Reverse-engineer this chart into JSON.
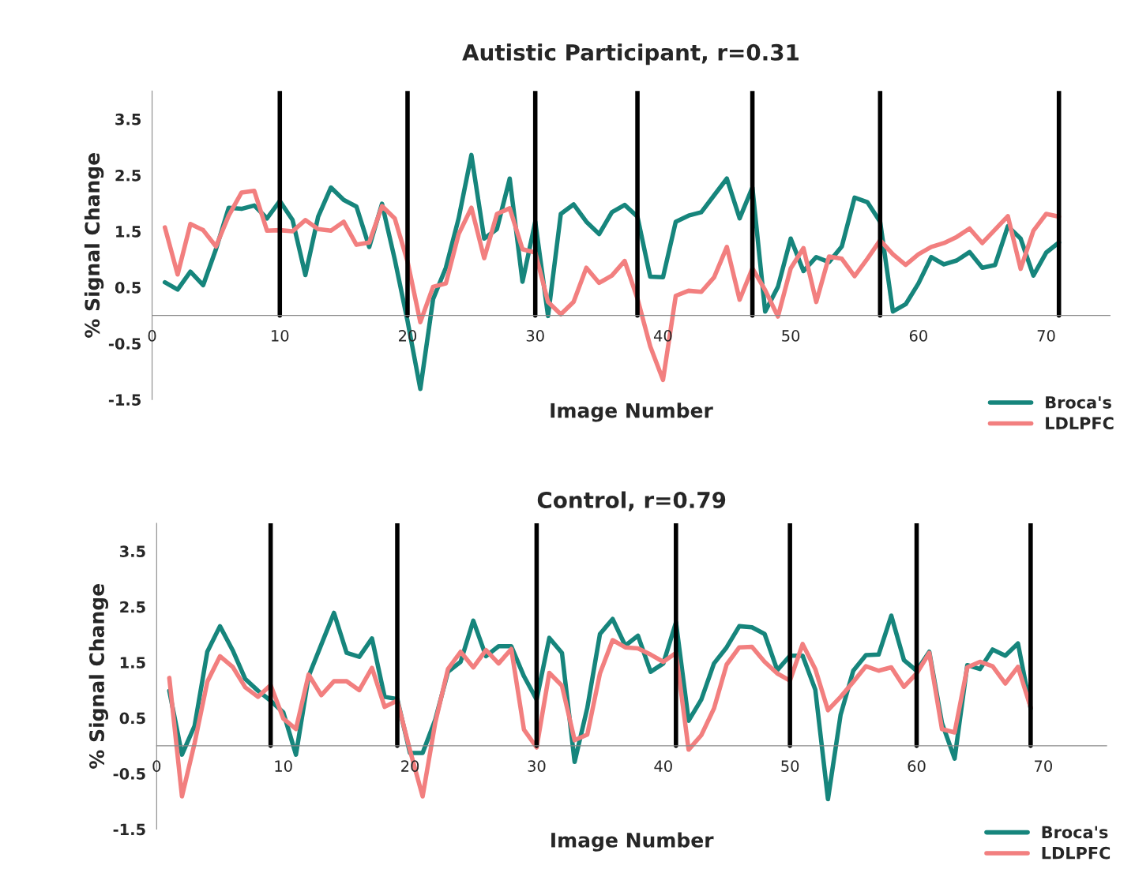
{
  "chart_data": [
    {
      "type": "line",
      "title": "Autistic Participant, r=0.31",
      "xlabel": "Image Number",
      "ylabel": "% Signal Change",
      "x": [
        1,
        2,
        3,
        4,
        5,
        6,
        7,
        8,
        9,
        10,
        11,
        12,
        13,
        14,
        15,
        16,
        17,
        18,
        19,
        20,
        21,
        22,
        23,
        24,
        25,
        26,
        27,
        28,
        29,
        30,
        31,
        32,
        33,
        34,
        35,
        36,
        37,
        38,
        39,
        40,
        41,
        42,
        43,
        44,
        45,
        46,
        47,
        48,
        49,
        50,
        51,
        52,
        53,
        54,
        55,
        56,
        57,
        58,
        59,
        60,
        61,
        62,
        63,
        64,
        65,
        66,
        67,
        68,
        69,
        70,
        71
      ],
      "series": [
        {
          "name": "Broca's",
          "color": "#16857c",
          "values": [
            0.59,
            0.46,
            0.78,
            0.54,
            1.18,
            1.92,
            1.9,
            1.96,
            1.73,
            2.04,
            1.7,
            0.72,
            1.76,
            2.28,
            2.06,
            1.94,
            1.22,
            1.99,
            1.0,
            -0.1,
            -1.31,
            0.29,
            0.85,
            1.73,
            2.86,
            1.37,
            1.54,
            2.44,
            0.6,
            1.67,
            -0.01,
            1.81,
            1.98,
            1.67,
            1.45,
            1.84,
            1.97,
            1.76,
            0.69,
            0.68,
            1.67,
            1.78,
            1.84,
            2.14,
            2.44,
            1.73,
            2.28,
            0.07,
            0.51,
            1.37,
            0.79,
            1.04,
            0.95,
            1.23,
            2.1,
            2.02,
            1.67,
            0.07,
            0.2,
            0.57,
            1.04,
            0.91,
            0.98,
            1.13,
            0.85,
            0.9,
            1.59,
            1.37,
            0.71,
            1.12,
            1.3
          ]
        },
        {
          "name": "LDLPFC",
          "color": "#f27f7f",
          "values": [
            1.57,
            0.73,
            1.63,
            1.52,
            1.23,
            1.78,
            2.19,
            2.22,
            1.51,
            1.52,
            1.5,
            1.7,
            1.54,
            1.51,
            1.67,
            1.26,
            1.3,
            1.95,
            1.73,
            0.96,
            -0.12,
            0.51,
            0.57,
            1.45,
            1.92,
            1.02,
            1.81,
            1.91,
            1.18,
            1.12,
            0.24,
            0.02,
            0.24,
            0.85,
            0.58,
            0.71,
            0.97,
            0.3,
            -0.55,
            -1.15,
            0.35,
            0.44,
            0.42,
            0.68,
            1.22,
            0.28,
            0.84,
            0.45,
            -0.02,
            0.84,
            1.2,
            0.24,
            1.05,
            1.01,
            0.7,
            1.01,
            1.34,
            1.09,
            0.9,
            1.09,
            1.22,
            1.29,
            1.4,
            1.55,
            1.29,
            1.53,
            1.77,
            0.83,
            1.51,
            1.81,
            1.76
          ]
        }
      ],
      "xlim": [
        0,
        75
      ],
      "xticks": [
        0,
        10,
        20,
        30,
        40,
        50,
        60,
        70
      ],
      "ylim": [
        -1.5,
        4
      ],
      "yticks": [
        -1.5,
        -0.5,
        0.5,
        1.5,
        2.5,
        3.5
      ],
      "ref_lines": [
        {
          "axis": "x",
          "value": 10,
          "color": "#000000"
        },
        {
          "axis": "x",
          "value": 20,
          "color": "#000000"
        },
        {
          "axis": "x",
          "value": 30,
          "color": "#000000"
        },
        {
          "axis": "x",
          "value": 38,
          "color": "#000000"
        },
        {
          "axis": "x",
          "value": 47,
          "color": "#000000"
        },
        {
          "axis": "x",
          "value": 57,
          "color": "#000000"
        },
        {
          "axis": "x",
          "value": 71,
          "color": "#000000"
        }
      ],
      "grid": false,
      "legend": "bottom right",
      "marker": "none",
      "line_style": "solid"
    },
    {
      "type": "line",
      "title": "Control, r=0.79",
      "xlabel": "Image Number",
      "ylabel": "% Signal Change",
      "x": [
        1,
        2,
        3,
        4,
        5,
        6,
        7,
        8,
        9,
        10,
        11,
        12,
        13,
        14,
        15,
        16,
        17,
        18,
        19,
        20,
        21,
        22,
        23,
        24,
        25,
        26,
        27,
        28,
        29,
        30,
        31,
        32,
        33,
        34,
        35,
        36,
        37,
        38,
        39,
        40,
        41,
        42,
        43,
        44,
        45,
        46,
        47,
        48,
        49,
        50,
        51,
        52,
        53,
        54,
        55,
        56,
        57,
        58,
        59,
        60,
        61,
        62,
        63,
        64,
        65,
        66,
        67,
        68,
        69
      ],
      "series": [
        {
          "name": "Broca's",
          "color": "#16857c",
          "values": [
            0.99,
            -0.16,
            0.36,
            1.69,
            2.15,
            1.72,
            1.2,
            0.99,
            0.81,
            0.6,
            -0.16,
            1.25,
            1.82,
            2.39,
            1.67,
            1.6,
            1.93,
            0.88,
            0.84,
            -0.13,
            -0.13,
            0.47,
            1.33,
            1.51,
            2.25,
            1.61,
            1.79,
            1.79,
            1.25,
            0.83,
            1.94,
            1.67,
            -0.29,
            0.68,
            2.01,
            2.28,
            1.8,
            1.98,
            1.33,
            1.48,
            2.22,
            0.45,
            0.83,
            1.48,
            1.77,
            2.15,
            2.13,
            2.01,
            1.36,
            1.62,
            1.62,
            1.01,
            -0.96,
            0.56,
            1.35,
            1.63,
            1.64,
            2.34,
            1.54,
            1.35,
            1.69,
            0.41,
            -0.23,
            1.45,
            1.38,
            1.73,
            1.62,
            1.84,
            0.67
          ]
        },
        {
          "name": "LDLPFC",
          "color": "#f27f7f",
          "values": [
            1.22,
            -0.91,
            0.05,
            1.15,
            1.61,
            1.42,
            1.05,
            0.88,
            1.09,
            0.49,
            0.3,
            1.28,
            0.91,
            1.16,
            1.16,
            1.0,
            1.4,
            0.7,
            0.81,
            -0.08,
            -0.91,
            0.42,
            1.38,
            1.69,
            1.41,
            1.72,
            1.48,
            1.74,
            0.29,
            -0.03,
            1.31,
            1.08,
            0.1,
            0.2,
            1.3,
            1.9,
            1.77,
            1.75,
            1.64,
            1.51,
            1.67,
            -0.07,
            0.19,
            0.67,
            1.46,
            1.77,
            1.78,
            1.51,
            1.3,
            1.17,
            1.83,
            1.38,
            0.64,
            0.88,
            1.15,
            1.43,
            1.35,
            1.41,
            1.06,
            1.3,
            1.67,
            0.3,
            0.24,
            1.41,
            1.51,
            1.43,
            1.12,
            1.42,
            0.69
          ]
        }
      ],
      "xlim": [
        0,
        75
      ],
      "xticks": [
        0,
        10,
        20,
        30,
        40,
        50,
        60,
        70
      ],
      "ylim": [
        -1.5,
        4
      ],
      "yticks": [
        -1.5,
        -0.5,
        0.5,
        1.5,
        2.5,
        3.5
      ],
      "ref_lines": [
        {
          "axis": "x",
          "value": 9,
          "color": "#000000"
        },
        {
          "axis": "x",
          "value": 19,
          "color": "#000000"
        },
        {
          "axis": "x",
          "value": 30,
          "color": "#000000"
        },
        {
          "axis": "x",
          "value": 41,
          "color": "#000000"
        },
        {
          "axis": "x",
          "value": 50,
          "color": "#000000"
        },
        {
          "axis": "x",
          "value": 60,
          "color": "#000000"
        },
        {
          "axis": "x",
          "value": 69,
          "color": "#000000"
        }
      ],
      "grid": false,
      "legend": "bottom right",
      "marker": "none",
      "line_style": "solid"
    }
  ]
}
